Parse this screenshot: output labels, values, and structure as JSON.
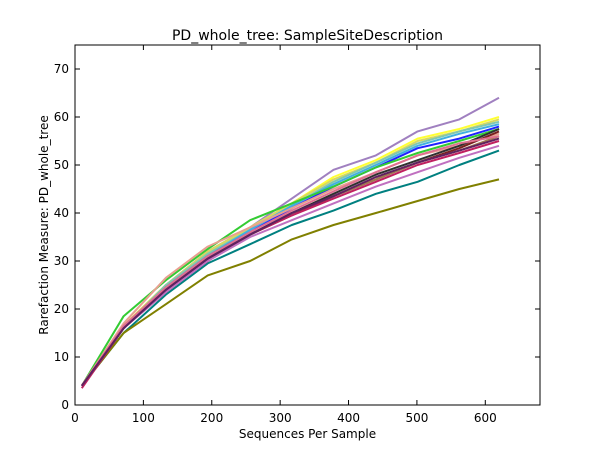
{
  "chart_data": {
    "type": "line",
    "title": "PD_whole_tree: SampleSiteDescription",
    "xlabel": "Sequences Per Sample",
    "ylabel": "Rarefaction Measure: PD_whole_tree",
    "xlim": [
      0,
      680
    ],
    "ylim": [
      0,
      75
    ],
    "xticks": [
      0,
      100,
      200,
      300,
      400,
      500,
      600
    ],
    "yticks": [
      0,
      10,
      20,
      30,
      40,
      50,
      60,
      70
    ],
    "grid": false,
    "x": [
      10,
      71,
      133,
      194,
      256,
      317,
      378,
      440,
      501,
      562,
      620
    ],
    "series": [
      {
        "color": "#a080c0",
        "values": [
          4,
          16,
          25,
          32,
          37,
          43,
          49,
          52,
          57,
          59.5,
          64
        ]
      },
      {
        "color": "#ffff33",
        "values": [
          4,
          16.5,
          25,
          31.5,
          37,
          42,
          47.5,
          51,
          55.5,
          57.5,
          60
        ]
      },
      {
        "color": "#d8d860",
        "values": [
          4,
          16.5,
          25,
          32,
          37,
          42,
          47,
          50.5,
          55,
          57,
          59.5
        ]
      },
      {
        "color": "#80c8b0",
        "values": [
          4,
          16,
          25,
          31.5,
          36.5,
          41.5,
          46.5,
          50.5,
          54.5,
          57,
          59
        ]
      },
      {
        "color": "#40b0e0",
        "values": [
          4,
          16,
          24.5,
          31,
          36.5,
          41.5,
          46,
          50,
          54,
          56.5,
          58.5
        ]
      },
      {
        "color": "#2020ff",
        "values": [
          4,
          16,
          24.5,
          31,
          36,
          41,
          45.5,
          49.5,
          53.5,
          55.5,
          58
        ]
      },
      {
        "color": "#33cc33",
        "values": [
          4,
          18.5,
          26,
          32.5,
          38.5,
          42,
          45.5,
          49.5,
          52.5,
          55,
          57.5
        ]
      },
      {
        "color": "#e8a090",
        "values": [
          4,
          17,
          26.5,
          33,
          37,
          41,
          45,
          48.5,
          52,
          54,
          56.5
        ]
      },
      {
        "color": "#008080",
        "values": [
          4,
          15,
          23,
          29.5,
          33.5,
          37.5,
          40.5,
          44,
          46.5,
          50,
          53
        ]
      },
      {
        "color": "#808000",
        "values": [
          4,
          15,
          21,
          27,
          30,
          34.5,
          37.5,
          40,
          42.5,
          45,
          47
        ]
      },
      {
        "color": "#7a2020",
        "values": [
          4,
          16,
          24,
          30,
          35.5,
          39.5,
          43.5,
          47,
          50.5,
          53.5,
          57
        ]
      },
      {
        "color": "#c02060",
        "values": [
          3.5,
          16,
          24,
          30,
          35.5,
          39.5,
          43,
          46.5,
          50,
          52.5,
          55
        ]
      },
      {
        "color": "#a07850",
        "values": [
          4,
          16,
          24.5,
          30.5,
          35.5,
          40,
          43.5,
          47,
          50.5,
          53,
          56
        ]
      },
      {
        "color": "#c070c0",
        "values": [
          4,
          16,
          23.5,
          30,
          35,
          38.5,
          42,
          45.5,
          48.5,
          51.5,
          54
        ]
      },
      {
        "color": "#303030",
        "values": [
          4,
          16,
          24,
          30.5,
          35.5,
          40,
          44,
          48,
          51,
          54,
          57.5
        ]
      },
      {
        "color": "#e07090",
        "values": [
          4,
          16.5,
          24.5,
          31,
          36,
          40.5,
          44.5,
          48.5,
          52,
          54.5,
          56
        ]
      },
      {
        "color": "#602060",
        "values": [
          4,
          16,
          24,
          30.5,
          35.5,
          40,
          43.5,
          47.5,
          50.5,
          53,
          55.5
        ]
      }
    ]
  }
}
